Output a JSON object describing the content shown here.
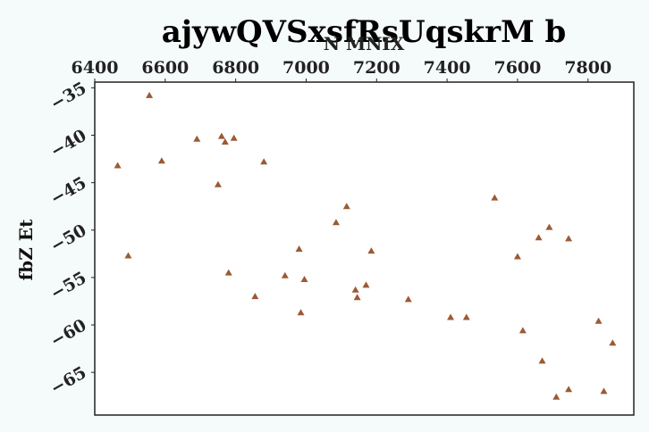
{
  "chart_data": {
    "type": "scatter",
    "title": "ajywQVSxsfRsUqskrM b",
    "xlabel": "N MNIX",
    "ylabel": "fbZ Et",
    "xlim": [
      6400,
      7930
    ],
    "ylim": [
      -69.5,
      -34.4
    ],
    "x_ticks": [
      6400,
      6600,
      6800,
      7000,
      7200,
      7400,
      7600,
      7800
    ],
    "y_ticks": [
      -35,
      -40,
      -45,
      -50,
      -55,
      -60,
      -65
    ],
    "x_axis_position": "top",
    "marker": "triangle",
    "grid": false,
    "colors": {
      "marker": "#9b5a35",
      "background": "#f5fbfa",
      "plot_area": "#ffffff",
      "frame": "#222222"
    },
    "points": [
      {
        "x": 6465,
        "y": -43.2
      },
      {
        "x": 6495,
        "y": -52.7
      },
      {
        "x": 6555,
        "y": -35.8
      },
      {
        "x": 6590,
        "y": -42.7
      },
      {
        "x": 6690,
        "y": -40.4
      },
      {
        "x": 6750,
        "y": -45.2
      },
      {
        "x": 6760,
        "y": -40.1
      },
      {
        "x": 6770,
        "y": -40.7
      },
      {
        "x": 6780,
        "y": -54.5
      },
      {
        "x": 6795,
        "y": -40.3
      },
      {
        "x": 6855,
        "y": -57.0
      },
      {
        "x": 6880,
        "y": -42.8
      },
      {
        "x": 6940,
        "y": -54.8
      },
      {
        "x": 6980,
        "y": -52.0
      },
      {
        "x": 6985,
        "y": -58.7
      },
      {
        "x": 6995,
        "y": -55.2
      },
      {
        "x": 7085,
        "y": -49.2
      },
      {
        "x": 7115,
        "y": -47.5
      },
      {
        "x": 7140,
        "y": -56.3
      },
      {
        "x": 7145,
        "y": -57.1
      },
      {
        "x": 7170,
        "y": -55.8
      },
      {
        "x": 7185,
        "y": -52.2
      },
      {
        "x": 7290,
        "y": -57.3
      },
      {
        "x": 7410,
        "y": -59.2
      },
      {
        "x": 7455,
        "y": -59.2
      },
      {
        "x": 7535,
        "y": -46.6
      },
      {
        "x": 7600,
        "y": -52.8
      },
      {
        "x": 7615,
        "y": -60.6
      },
      {
        "x": 7660,
        "y": -50.8
      },
      {
        "x": 7670,
        "y": -63.8
      },
      {
        "x": 7690,
        "y": -49.7
      },
      {
        "x": 7710,
        "y": -67.6
      },
      {
        "x": 7745,
        "y": -50.9
      },
      {
        "x": 7745,
        "y": -66.8
      },
      {
        "x": 7830,
        "y": -59.6
      },
      {
        "x": 7845,
        "y": -67.0
      },
      {
        "x": 7870,
        "y": -61.9
      }
    ]
  }
}
